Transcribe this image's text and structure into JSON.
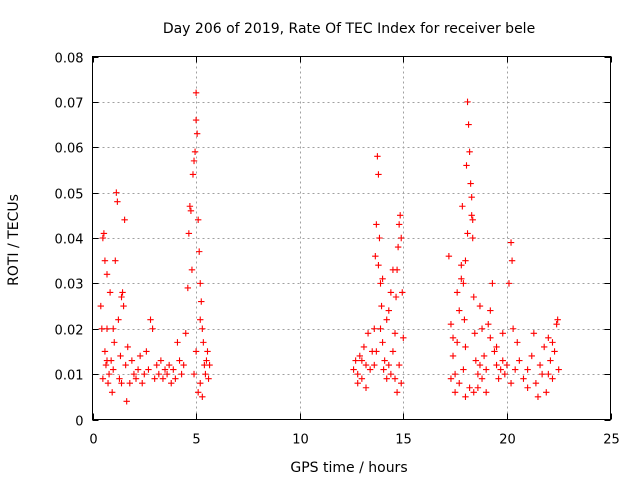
{
  "chart_data": {
    "type": "scatter",
    "title": "Day 206 of 2019, Rate Of TEC Index for receiver bele",
    "xlabel": "GPS time / hours",
    "ylabel": "ROTI / TECUs",
    "xlim": [
      0,
      25
    ],
    "ylim": [
      0,
      0.08
    ],
    "xticks": [
      0,
      5,
      10,
      15,
      20,
      25
    ],
    "xtick_labels": [
      "0",
      "5",
      "10",
      "15",
      "20",
      "25"
    ],
    "yticks": [
      0,
      0.01,
      0.02,
      0.03,
      0.04,
      0.05,
      0.06,
      0.07,
      0.08
    ],
    "ytick_labels": [
      "0",
      "0.01",
      "0.02",
      "0.03",
      "0.04",
      "0.05",
      "0.06",
      "0.07",
      "0.08"
    ],
    "grid": true,
    "marker": "+",
    "color": "#ff0000",
    "series": [
      {
        "name": "ROTI",
        "points": [
          [
            0.4,
            0.025
          ],
          [
            0.45,
            0.02
          ],
          [
            0.5,
            0.04
          ],
          [
            0.55,
            0.041
          ],
          [
            0.6,
            0.035
          ],
          [
            0.6,
            0.015
          ],
          [
            0.65,
            0.012
          ],
          [
            0.7,
            0.032
          ],
          [
            0.7,
            0.02
          ],
          [
            0.75,
            0.008
          ],
          [
            0.8,
            0.01
          ],
          [
            0.85,
            0.028
          ],
          [
            0.9,
            0.013
          ],
          [
            0.95,
            0.006
          ],
          [
            1.0,
            0.011
          ],
          [
            1.05,
            0.017
          ],
          [
            1.1,
            0.035
          ],
          [
            1.15,
            0.05
          ],
          [
            1.2,
            0.048
          ],
          [
            1.25,
            0.022
          ],
          [
            1.3,
            0.009
          ],
          [
            1.35,
            0.014
          ],
          [
            1.4,
            0.027
          ],
          [
            1.45,
            0.028
          ],
          [
            1.5,
            0.025
          ],
          [
            1.55,
            0.044
          ],
          [
            1.6,
            0.012
          ],
          [
            1.65,
            0.004
          ],
          [
            1.7,
            0.016
          ],
          [
            1.8,
            0.008
          ],
          [
            1.9,
            0.013
          ],
          [
            2.0,
            0.01
          ],
          [
            2.1,
            0.009
          ],
          [
            2.2,
            0.011
          ],
          [
            2.3,
            0.014
          ],
          [
            2.4,
            0.008
          ],
          [
            2.5,
            0.01
          ],
          [
            2.6,
            0.015
          ],
          [
            2.7,
            0.011
          ],
          [
            2.8,
            0.022
          ],
          [
            2.9,
            0.02
          ],
          [
            3.0,
            0.009
          ],
          [
            3.1,
            0.012
          ],
          [
            3.2,
            0.01
          ],
          [
            3.3,
            0.013
          ],
          [
            3.4,
            0.009
          ],
          [
            3.5,
            0.011
          ],
          [
            3.6,
            0.01
          ],
          [
            3.7,
            0.012
          ],
          [
            3.8,
            0.008
          ],
          [
            3.9,
            0.011
          ],
          [
            4.0,
            0.009
          ],
          [
            4.1,
            0.017
          ],
          [
            4.2,
            0.013
          ],
          [
            4.3,
            0.01
          ],
          [
            4.4,
            0.012
          ],
          [
            4.5,
            0.019
          ],
          [
            4.6,
            0.029
          ],
          [
            4.65,
            0.041
          ],
          [
            4.7,
            0.047
          ],
          [
            4.75,
            0.046
          ],
          [
            4.8,
            0.033
          ],
          [
            4.85,
            0.054
          ],
          [
            4.9,
            0.057
          ],
          [
            4.95,
            0.059
          ],
          [
            5.0,
            0.072
          ],
          [
            5.0,
            0.066
          ],
          [
            5.05,
            0.063
          ],
          [
            5.1,
            0.044
          ],
          [
            5.15,
            0.037
          ],
          [
            5.2,
            0.03
          ],
          [
            5.25,
            0.026
          ],
          [
            5.3,
            0.02
          ],
          [
            5.35,
            0.017
          ],
          [
            5.4,
            0.012
          ],
          [
            5.45,
            0.01
          ],
          [
            5.5,
            0.013
          ],
          [
            5.55,
            0.015
          ],
          [
            5.6,
            0.009
          ],
          [
            5.65,
            0.012
          ],
          [
            5.1,
            0.006
          ],
          [
            5.2,
            0.008
          ],
          [
            5.3,
            0.005
          ],
          [
            0.5,
            0.009
          ],
          [
            0.7,
            0.013
          ],
          [
            1.0,
            0.02
          ],
          [
            1.4,
            0.008
          ],
          [
            4.9,
            0.01
          ],
          [
            5.0,
            0.015
          ],
          [
            5.2,
            0.022
          ],
          [
            12.6,
            0.011
          ],
          [
            12.7,
            0.013
          ],
          [
            12.8,
            0.01
          ],
          [
            12.9,
            0.014
          ],
          [
            13.0,
            0.009
          ],
          [
            13.1,
            0.016
          ],
          [
            13.2,
            0.012
          ],
          [
            13.3,
            0.019
          ],
          [
            13.4,
            0.011
          ],
          [
            13.5,
            0.015
          ],
          [
            13.6,
            0.02
          ],
          [
            13.65,
            0.036
          ],
          [
            13.7,
            0.043
          ],
          [
            13.75,
            0.058
          ],
          [
            13.8,
            0.054
          ],
          [
            13.85,
            0.04
          ],
          [
            13.9,
            0.03
          ],
          [
            13.95,
            0.025
          ],
          [
            14.0,
            0.017
          ],
          [
            14.05,
            0.011
          ],
          [
            14.1,
            0.013
          ],
          [
            14.2,
            0.009
          ],
          [
            14.3,
            0.012
          ],
          [
            14.4,
            0.01
          ],
          [
            14.5,
            0.015
          ],
          [
            14.6,
            0.019
          ],
          [
            14.65,
            0.027
          ],
          [
            14.7,
            0.033
          ],
          [
            14.75,
            0.038
          ],
          [
            14.8,
            0.043
          ],
          [
            14.85,
            0.045
          ],
          [
            14.9,
            0.04
          ],
          [
            14.95,
            0.028
          ],
          [
            15.0,
            0.018
          ],
          [
            14.9,
            0.008
          ],
          [
            14.8,
            0.012
          ],
          [
            14.7,
            0.006
          ],
          [
            14.6,
            0.009
          ],
          [
            13.8,
            0.034
          ],
          [
            14.0,
            0.031
          ],
          [
            13.9,
            0.02
          ],
          [
            13.7,
            0.015
          ],
          [
            14.4,
            0.028
          ],
          [
            14.5,
            0.033
          ],
          [
            12.8,
            0.008
          ],
          [
            13.0,
            0.013
          ],
          [
            13.2,
            0.007
          ],
          [
            14.2,
            0.022
          ],
          [
            14.3,
            0.024
          ],
          [
            13.6,
            0.012
          ],
          [
            17.2,
            0.036
          ],
          [
            17.3,
            0.021
          ],
          [
            17.4,
            0.014
          ],
          [
            17.5,
            0.01
          ],
          [
            17.6,
            0.017
          ],
          [
            17.7,
            0.024
          ],
          [
            17.8,
            0.034
          ],
          [
            17.85,
            0.047
          ],
          [
            17.9,
            0.03
          ],
          [
            17.95,
            0.022
          ],
          [
            18.0,
            0.016
          ],
          [
            18.05,
            0.056
          ],
          [
            18.1,
            0.07
          ],
          [
            18.15,
            0.065
          ],
          [
            18.2,
            0.059
          ],
          [
            18.25,
            0.052
          ],
          [
            18.3,
            0.045
          ],
          [
            18.35,
            0.04
          ],
          [
            18.4,
            0.027
          ],
          [
            18.45,
            0.019
          ],
          [
            18.5,
            0.013
          ],
          [
            18.6,
            0.01
          ],
          [
            18.7,
            0.012
          ],
          [
            18.8,
            0.009
          ],
          [
            18.9,
            0.014
          ],
          [
            19.0,
            0.011
          ],
          [
            19.1,
            0.021
          ],
          [
            19.2,
            0.024
          ],
          [
            19.3,
            0.03
          ],
          [
            19.4,
            0.015
          ],
          [
            19.5,
            0.012
          ],
          [
            19.6,
            0.009
          ],
          [
            19.7,
            0.011
          ],
          [
            19.8,
            0.013
          ],
          [
            19.9,
            0.01
          ],
          [
            20.0,
            0.012
          ],
          [
            20.1,
            0.03
          ],
          [
            20.2,
            0.039
          ],
          [
            20.25,
            0.035
          ],
          [
            20.3,
            0.02
          ],
          [
            20.4,
            0.011
          ],
          [
            20.6,
            0.013
          ],
          [
            20.8,
            0.009
          ],
          [
            21.0,
            0.011
          ],
          [
            21.2,
            0.014
          ],
          [
            21.4,
            0.008
          ],
          [
            21.6,
            0.012
          ],
          [
            21.8,
            0.016
          ],
          [
            22.0,
            0.01
          ],
          [
            22.1,
            0.013
          ],
          [
            22.2,
            0.009
          ],
          [
            22.3,
            0.015
          ],
          [
            22.4,
            0.021
          ],
          [
            22.45,
            0.022
          ],
          [
            22.5,
            0.011
          ],
          [
            17.3,
            0.009
          ],
          [
            17.5,
            0.006
          ],
          [
            17.7,
            0.008
          ],
          [
            18.0,
            0.005
          ],
          [
            18.2,
            0.007
          ],
          [
            18.4,
            0.006
          ],
          [
            18.6,
            0.007
          ],
          [
            17.6,
            0.028
          ],
          [
            17.8,
            0.031
          ],
          [
            18.0,
            0.035
          ],
          [
            18.3,
            0.049
          ],
          [
            18.35,
            0.044
          ],
          [
            18.1,
            0.041
          ],
          [
            17.9,
            0.011
          ],
          [
            17.4,
            0.018
          ],
          [
            19.0,
            0.006
          ],
          [
            19.5,
            0.016
          ],
          [
            19.8,
            0.019
          ],
          [
            20.2,
            0.008
          ],
          [
            20.5,
            0.017
          ],
          [
            21.0,
            0.007
          ],
          [
            21.3,
            0.019
          ],
          [
            21.5,
            0.005
          ],
          [
            21.7,
            0.01
          ],
          [
            22.0,
            0.018
          ],
          [
            21.9,
            0.006
          ],
          [
            22.2,
            0.017
          ],
          [
            18.7,
            0.025
          ],
          [
            18.8,
            0.02
          ],
          [
            19.2,
            0.018
          ]
        ]
      }
    ]
  }
}
